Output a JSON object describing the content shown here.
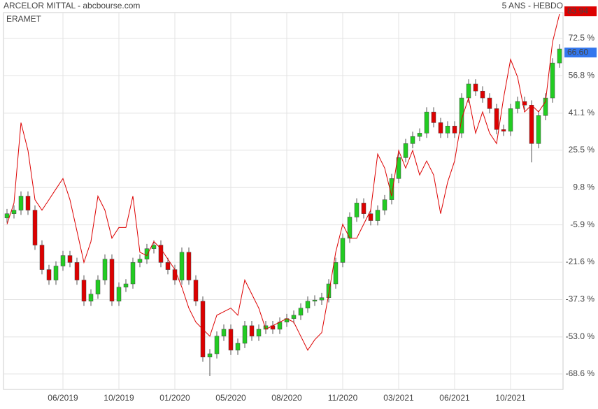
{
  "chart_data": {
    "type": "candlestick",
    "title": "ARCELOR MITTAL - abcbourse.com",
    "subtitle": "5 ANS - HEBDO",
    "categories": [
      null,
      null,
      null,
      null,
      null,
      null,
      null,
      null,
      "06/2019",
      null,
      null,
      null,
      null,
      null,
      null,
      null,
      "10/2019",
      null,
      null,
      null,
      null,
      null,
      null,
      null,
      "01/2020",
      null,
      null,
      null,
      null,
      null,
      null,
      null,
      "05/2020",
      null,
      null,
      null,
      null,
      null,
      null,
      null,
      "08/2020",
      null,
      null,
      null,
      null,
      null,
      null,
      null,
      "11/2020",
      null,
      null,
      null,
      null,
      null,
      null,
      null,
      "03/2021",
      null,
      null,
      null,
      null,
      null,
      null,
      null,
      "06/2021",
      null,
      null,
      null,
      null,
      null,
      null,
      null,
      "10/2021",
      null,
      null,
      null,
      null,
      null,
      null,
      null
    ],
    "open": [
      -3.0,
      -1.2,
      0.3,
      6.2,
      0.3,
      -14.4,
      -24.7,
      -29.1,
      -23.2,
      -18.8,
      -21.7,
      -29.1,
      -38.0,
      -35.0,
      -29.1,
      -20.3,
      -38.0,
      -32.1,
      -30.7,
      -21.7,
      -20.3,
      -15.9,
      -14.4,
      -21.7,
      -24.7,
      -29.1,
      -17.4,
      -29.1,
      -38.0,
      -61.5,
      -60.1,
      -52.7,
      -49.8,
      -58.6,
      -55.7,
      -48.3,
      -52.7,
      -49.8,
      -48.3,
      -49.8,
      -46.8,
      -45.3,
      -43.9,
      -40.9,
      -38.0,
      -37.5,
      -36.5,
      -30.7,
      -21.7,
      -11.5,
      -2.6,
      3.3,
      -1.2,
      -4.1,
      0.3,
      4.7,
      13.6,
      22.4,
      28.3,
      31.3,
      32.7,
      41.6,
      37.1,
      32.7,
      35.7,
      32.7,
      47.5,
      53.4,
      50.4,
      47.5,
      43.0,
      34.2,
      33.5,
      43.0,
      46.0,
      44.5,
      28.3,
      40.1,
      47.5,
      62.2
    ],
    "high": [
      0.8,
      2.3,
      8.2,
      8.2,
      2.3,
      -12.4,
      -22.7,
      -21.2,
      -16.8,
      -16.8,
      -19.7,
      -27.1,
      -33.0,
      -27.1,
      -18.3,
      -18.3,
      -30.1,
      -28.7,
      -19.7,
      -18.3,
      -13.9,
      -12.4,
      -12.4,
      -19.7,
      -22.7,
      -15.4,
      -15.4,
      -27.1,
      -36.0,
      -58.1,
      -50.7,
      -47.8,
      -47.8,
      -53.7,
      -46.3,
      -46.3,
      -47.8,
      -46.3,
      -46.3,
      -44.8,
      -43.3,
      -41.9,
      -38.9,
      -36.0,
      -35.5,
      -34.5,
      -28.7,
      -19.7,
      -9.5,
      -0.6,
      5.3,
      5.3,
      0.8,
      2.3,
      6.7,
      15.6,
      24.4,
      30.3,
      33.3,
      34.7,
      43.6,
      43.6,
      39.1,
      37.7,
      37.7,
      49.5,
      55.4,
      55.4,
      52.4,
      49.5,
      45.0,
      36.2,
      45.0,
      48.0,
      48.0,
      46.5,
      42.1,
      49.5,
      64.2,
      70.1
    ],
    "low": [
      -5.0,
      -3.2,
      -1.7,
      -1.7,
      -16.4,
      -26.7,
      -31.1,
      -31.1,
      -25.2,
      -23.7,
      -31.1,
      -40.0,
      -40.0,
      -37.0,
      -31.1,
      -40.0,
      -40.0,
      -34.1,
      -32.7,
      -23.7,
      -22.3,
      -17.9,
      -23.7,
      -26.7,
      -31.1,
      -31.1,
      -31.1,
      -40.0,
      -63.5,
      -69.5,
      -62.1,
      -54.7,
      -60.6,
      -60.6,
      -57.7,
      -54.7,
      -54.7,
      -51.8,
      -51.8,
      -51.8,
      -48.8,
      -47.3,
      -45.9,
      -42.9,
      -40.0,
      -39.5,
      -38.5,
      -32.7,
      -23.7,
      -13.5,
      -4.6,
      -3.2,
      -6.1,
      -6.1,
      -1.7,
      2.7,
      11.6,
      20.4,
      26.3,
      29.3,
      30.7,
      35.1,
      30.7,
      30.7,
      30.7,
      30.7,
      45.5,
      48.4,
      45.5,
      41.0,
      32.2,
      31.5,
      31.5,
      41.0,
      42.5,
      20.4,
      26.3,
      38.1,
      45.5,
      60.2
    ],
    "close": [
      -1.2,
      0.3,
      6.2,
      0.3,
      -14.4,
      -24.7,
      -29.1,
      -23.2,
      -18.8,
      -21.7,
      -29.1,
      -38.0,
      -35.0,
      -29.1,
      -20.3,
      -38.0,
      -32.1,
      -30.7,
      -21.7,
      -20.3,
      -15.9,
      -14.4,
      -21.7,
      -24.7,
      -29.1,
      -17.4,
      -29.1,
      -38.0,
      -61.5,
      -60.1,
      -52.7,
      -49.8,
      -58.6,
      -55.7,
      -48.3,
      -52.7,
      -49.8,
      -48.3,
      -49.8,
      -46.8,
      -45.3,
      -43.9,
      -40.9,
      -38.0,
      -37.5,
      -36.5,
      -30.7,
      -21.7,
      -11.5,
      -2.6,
      3.3,
      -1.2,
      -4.1,
      0.3,
      4.7,
      13.6,
      22.4,
      28.3,
      31.3,
      32.7,
      41.6,
      37.1,
      32.7,
      35.7,
      32.7,
      47.5,
      53.4,
      50.4,
      47.5,
      43.0,
      34.2,
      33.5,
      43.0,
      46.0,
      44.5,
      28.3,
      40.1,
      47.5,
      62.2,
      68.1
    ],
    "up_color": "#22cc22",
    "down_color": "#dd0000",
    "series": [
      {
        "name": "ERAMET",
        "color": "#dd0000",
        "values": [
          -5.6,
          3.3,
          37.1,
          25.4,
          4.7,
          0.3,
          4.7,
          9.2,
          13.6,
          4.7,
          -8.5,
          -21.7,
          -12.9,
          6.2,
          0.3,
          -11.5,
          -7.0,
          -7.0,
          6.2,
          -17.4,
          -18.8,
          -12.9,
          -15.9,
          -20.3,
          -24.7,
          -32.1,
          -40.9,
          -46.8,
          -49.8,
          -52.7,
          -43.9,
          -42.4,
          -40.9,
          -43.9,
          -29.1,
          -35.0,
          -40.9,
          -49.8,
          -48.3,
          -46.8,
          -45.3,
          -46.8,
          -52.7,
          -58.6,
          -54.2,
          -51.2,
          -35.0,
          -17.4,
          -5.6,
          -11.5,
          -11.5,
          -5.6,
          0.3,
          23.9,
          18.0,
          6.2,
          25.4,
          18.0,
          25.4,
          15.1,
          21.0,
          15.1,
          -1.2,
          12.1,
          21.0,
          38.6,
          47.5,
          32.7,
          41.6,
          32.7,
          28.3,
          47.5,
          63.7,
          56.3,
          41.6,
          44.5,
          41.6,
          46.0,
          71.0,
          82.8
        ]
      }
    ],
    "price_tags": [
      {
        "value": 83.94,
        "label": "83.94",
        "color": "#dd0000"
      },
      {
        "value": 66.6,
        "label": "66.60",
        "color": "#3377ee"
      }
    ],
    "ylim": [
      -75.1,
      83.4
    ],
    "yticks": [
      {
        "value": 72.5,
        "label": "72.5 %"
      },
      {
        "value": 56.8,
        "label": "56.8 %"
      },
      {
        "value": 41.1,
        "label": "41.1 %"
      },
      {
        "value": 25.5,
        "label": "25.5 %"
      },
      {
        "value": 9.8,
        "label": "9.8 %"
      },
      {
        "value": -5.9,
        "label": "-5.9 %"
      },
      {
        "value": -21.6,
        "label": "-21.6 %"
      },
      {
        "value": -37.3,
        "label": "-37.3 %"
      },
      {
        "value": -53.0,
        "label": "-53.0 %"
      },
      {
        "value": -68.6,
        "label": "-68.6 %"
      }
    ],
    "grid": true
  }
}
